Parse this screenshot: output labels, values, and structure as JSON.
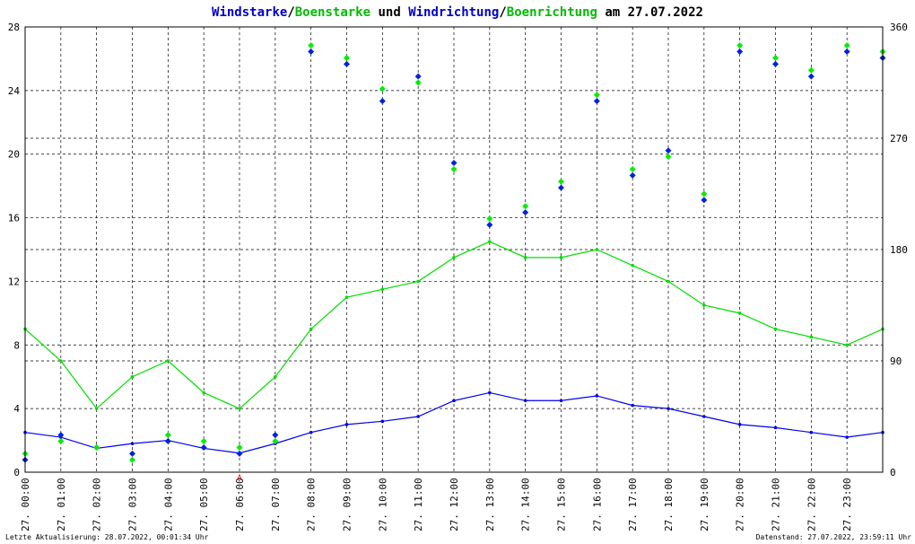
{
  "chart_data": {
    "type": "scatter",
    "title_parts": [
      {
        "text": "Windstarke",
        "color": "#0000cc"
      },
      {
        "text": "/",
        "color": "#000000"
      },
      {
        "text": "Boenstarke",
        "color": "#00bb00"
      },
      {
        "text": " und ",
        "color": "#000000"
      },
      {
        "text": "Windrichtung",
        "color": "#0000cc"
      },
      {
        "text": "/",
        "color": "#000000"
      },
      {
        "text": "Boenrichtung",
        "color": "#00bb00"
      },
      {
        "text": " am 27.07.2022",
        "color": "#000000"
      }
    ],
    "y_left_ticks": [
      "0",
      "4",
      "8",
      "12",
      "16",
      "20",
      "24",
      "28"
    ],
    "y_left_range": [
      0,
      28
    ],
    "y_right_ticks": [
      "0",
      "90",
      "180",
      "270",
      "360"
    ],
    "y_right_range": [
      0,
      360
    ],
    "x_ticks": [
      "27. 00:00",
      "27. 01:00",
      "27. 02:00",
      "27. 03:00",
      "27. 04:00",
      "27. 05:00",
      "27. 06:00",
      "27. 07:00",
      "27. 08:00",
      "27. 09:00",
      "27. 10:00",
      "27. 11:00",
      "27. 12:00",
      "27. 13:00",
      "27. 14:00",
      "27. 15:00",
      "27. 16:00",
      "27. 17:00",
      "27. 18:00",
      "27. 19:00",
      "27. 20:00",
      "27. 21:00",
      "27. 22:00",
      "27. 23:00"
    ],
    "x_range_hours": [
      0,
      24
    ],
    "grid": true,
    "marker_label": "A",
    "marker_hour": 6,
    "series": [
      {
        "name": "Windstarke",
        "kind": "line",
        "axis": "left",
        "color": "#0000ee",
        "hours": [
          0,
          1,
          2,
          3,
          4,
          5,
          6,
          7,
          8,
          9,
          10,
          11,
          12,
          13,
          14,
          15,
          16,
          17,
          18,
          19,
          20,
          21,
          22,
          23,
          24
        ],
        "values": [
          2.5,
          2.2,
          1.5,
          1.8,
          2.0,
          1.5,
          1.2,
          1.8,
          2.5,
          3.0,
          3.2,
          3.5,
          4.5,
          5.0,
          4.5,
          4.5,
          4.8,
          4.2,
          4.0,
          3.5,
          3.0,
          2.8,
          2.5,
          2.2,
          2.5
        ]
      },
      {
        "name": "Boenstarke",
        "kind": "line",
        "axis": "left",
        "color": "#00dd00",
        "hours": [
          0,
          1,
          2,
          3,
          4,
          5,
          6,
          7,
          8,
          9,
          10,
          11,
          12,
          13,
          14,
          15,
          16,
          17,
          18,
          19,
          20,
          21,
          22,
          23,
          24
        ],
        "values": [
          9.0,
          7.0,
          4.0,
          6.0,
          7.0,
          5.0,
          4.0,
          6.0,
          9.0,
          11.0,
          11.5,
          12.0,
          13.5,
          14.5,
          13.5,
          13.5,
          14.0,
          13.0,
          12.0,
          10.5,
          10.0,
          9.0,
          8.5,
          8.0,
          9.0
        ]
      },
      {
        "name": "Windrichtung",
        "kind": "scatter",
        "axis": "right",
        "color": "#0022dd",
        "hours": [
          0,
          1,
          2,
          3,
          4,
          5,
          6,
          7,
          8,
          9,
          10,
          11,
          12,
          13,
          14,
          15,
          16,
          17,
          18,
          19,
          20,
          21,
          22,
          23,
          24
        ],
        "values": [
          10,
          30,
          20,
          15,
          25,
          20,
          15,
          30,
          340,
          330,
          300,
          320,
          250,
          200,
          210,
          230,
          300,
          240,
          260,
          220,
          340,
          330,
          320,
          340,
          335
        ]
      },
      {
        "name": "Boenrichtung",
        "kind": "scatter",
        "axis": "right",
        "color": "#00ee00",
        "hours": [
          0,
          1,
          2,
          3,
          4,
          5,
          6,
          7,
          8,
          9,
          10,
          11,
          12,
          13,
          14,
          15,
          16,
          17,
          18,
          19,
          20,
          21,
          22,
          23,
          24
        ],
        "values": [
          15,
          25,
          20,
          10,
          30,
          25,
          20,
          25,
          345,
          335,
          310,
          315,
          245,
          205,
          215,
          235,
          305,
          245,
          255,
          225,
          345,
          335,
          325,
          345,
          340
        ]
      }
    ]
  },
  "footer": {
    "left": "Letzte Aktualisierung: 28.07.2022, 00:01:34 Uhr",
    "right": "Datenstand: 27.07.2022, 23:59:11 Uhr"
  }
}
